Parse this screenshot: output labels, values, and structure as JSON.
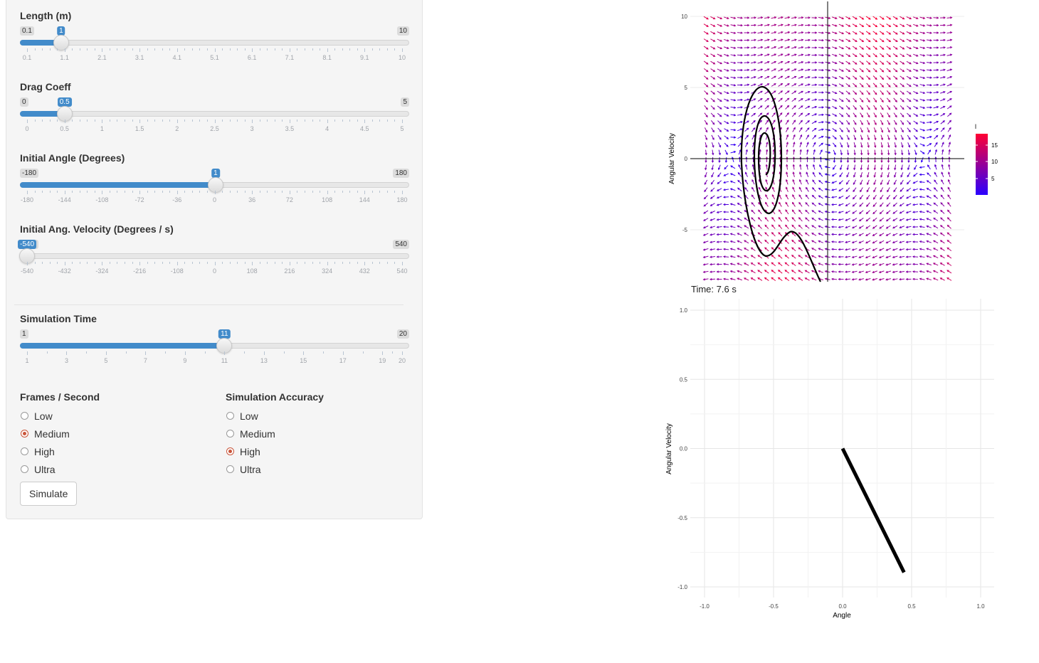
{
  "sliders": [
    {
      "label": "Length (m)",
      "min": 0.1,
      "max": 10,
      "value": 1,
      "min_label": "0.1",
      "max_label": "10",
      "value_label": "1",
      "ticks": [
        "0.1",
        "1.1",
        "2.1",
        "3.1",
        "4.1",
        "5.1",
        "6.1",
        "7.1",
        "8.1",
        "9.1",
        "10"
      ]
    },
    {
      "label": "Drag Coeff",
      "min": 0,
      "max": 5,
      "value": 0.5,
      "min_label": "0",
      "max_label": "5",
      "value_label": "0.5",
      "ticks": [
        "0",
        "0.5",
        "1",
        "1.5",
        "2",
        "2.5",
        "3",
        "3.5",
        "4",
        "4.5",
        "5"
      ]
    },
    {
      "label": "Initial Angle (Degrees)",
      "min": -180,
      "max": 180,
      "value": 1,
      "min_label": "-180",
      "max_label": "180",
      "value_label": "1",
      "ticks": [
        "-180",
        "-144",
        "-108",
        "-72",
        "-36",
        "0",
        "36",
        "72",
        "108",
        "144",
        "180"
      ]
    },
    {
      "label": "Initial Ang. Velocity (Degrees / s)",
      "min": -540,
      "max": 540,
      "value": -540,
      "min_label": "-540",
      "max_label": "540",
      "value_label": "-540",
      "ticks": [
        "-540",
        "-432",
        "-324",
        "-216",
        "-108",
        "0",
        "108",
        "216",
        "324",
        "432",
        "540"
      ]
    },
    {
      "label": "Simulation Time",
      "min": 1,
      "max": 20,
      "value": 11,
      "min_label": "1",
      "max_label": "20",
      "value_label": "11",
      "ticks": [
        "1",
        "3",
        "5",
        "7",
        "9",
        "11",
        "13",
        "15",
        "17",
        "19",
        "20"
      ]
    }
  ],
  "fps": {
    "label": "Frames / Second",
    "options": [
      "Low",
      "Medium",
      "High",
      "Ultra"
    ],
    "selected": "Medium"
  },
  "accuracy": {
    "label": "Simulation Accuracy",
    "options": [
      "Low",
      "Medium",
      "High",
      "Ultra"
    ],
    "selected": "High"
  },
  "simulate_label": "Simulate",
  "phase_plot": {
    "ylabel": "Angular Velocity",
    "yticks": [
      "10",
      "5",
      "0",
      "-5"
    ],
    "legend_title": "l",
    "legend_ticks": [
      "15",
      "10",
      "5"
    ],
    "colors": {
      "low": "#2a00ff",
      "high": "#ff0033"
    }
  },
  "time_label": "Time: 7.6 s",
  "chart_data": {
    "type": "line",
    "title": "",
    "xlabel": "Angle",
    "ylabel": "Angular Velocity",
    "xlim": [
      -1.05,
      1.1
    ],
    "ylim": [
      -1.05,
      1.05
    ],
    "xticks": [
      "-1.0",
      "-0.5",
      "0.0",
      "0.5",
      "1.0"
    ],
    "yticks": [
      "1.0",
      "0.5",
      "0.0",
      "-0.5",
      "-1.0"
    ],
    "series": [
      {
        "x": [
          0,
          0.445
        ],
        "y": [
          0,
          -0.895
        ]
      }
    ],
    "grid": true
  }
}
